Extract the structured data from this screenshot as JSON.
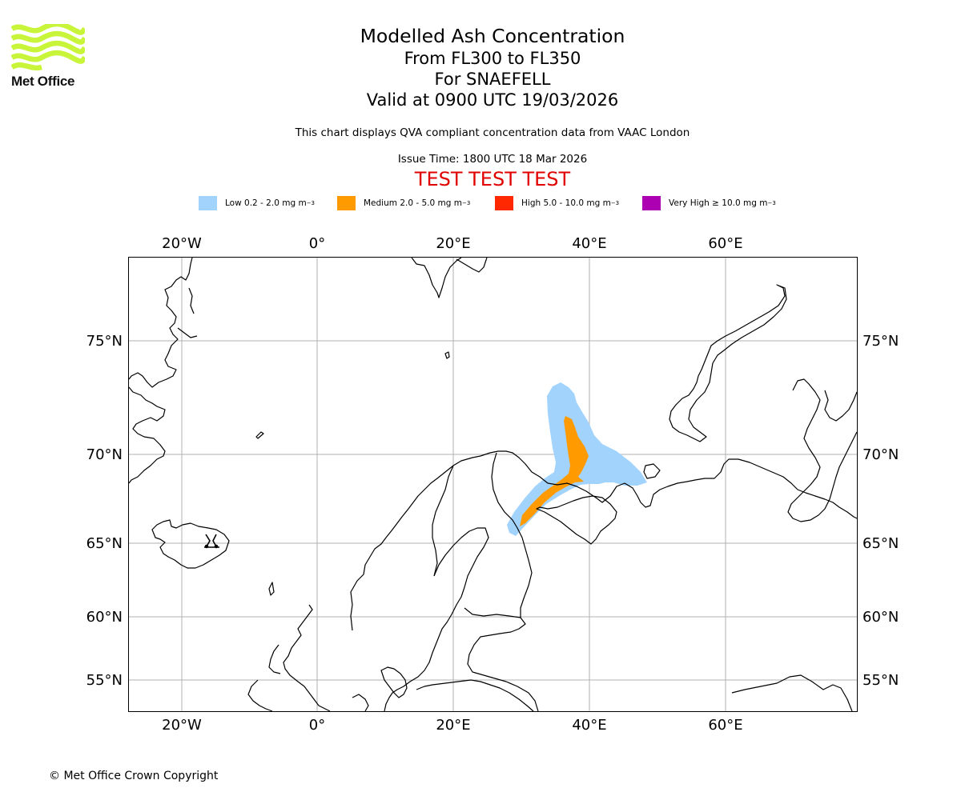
{
  "logo": {
    "text": "Met Office",
    "color": "#c8f53a"
  },
  "header": {
    "title": "Modelled Ash Concentration",
    "levels": "From FL300 to FL350",
    "volcano": "For SNAEFELL",
    "valid": "Valid at 0900 UTC 19/03/2026",
    "description": "This chart displays QVA compliant concentration data from VAAC London",
    "issue_time": "Issue Time: 1800 UTC 18 Mar 2026",
    "test_banner": "TEST TEST TEST"
  },
  "legend": [
    {
      "label": "Low 0.2 - 2.0 mg m",
      "unit_sup": "−3",
      "color": "#a2d3fc"
    },
    {
      "label": "Medium 2.0 - 5.0 mg m",
      "unit_sup": "−3",
      "color": "#ff9a00"
    },
    {
      "label": "High 5.0 - 10.0 mg m",
      "unit_sup": "−3",
      "color": "#ff2800"
    },
    {
      "label": "Very High  ≥  10.0 mg m",
      "unit_sup": "−3",
      "color": "#ad00b2"
    }
  ],
  "map": {
    "lon_labels": [
      "20°W",
      "0°",
      "20°E",
      "40°E",
      "60°E"
    ],
    "lat_labels": [
      "75°N",
      "70°N",
      "65°N",
      "60°N",
      "55°N"
    ],
    "volcano_icon": "volcano-icon",
    "grid": true
  },
  "footer": {
    "copyright": "© Met Office Crown Copyright"
  }
}
